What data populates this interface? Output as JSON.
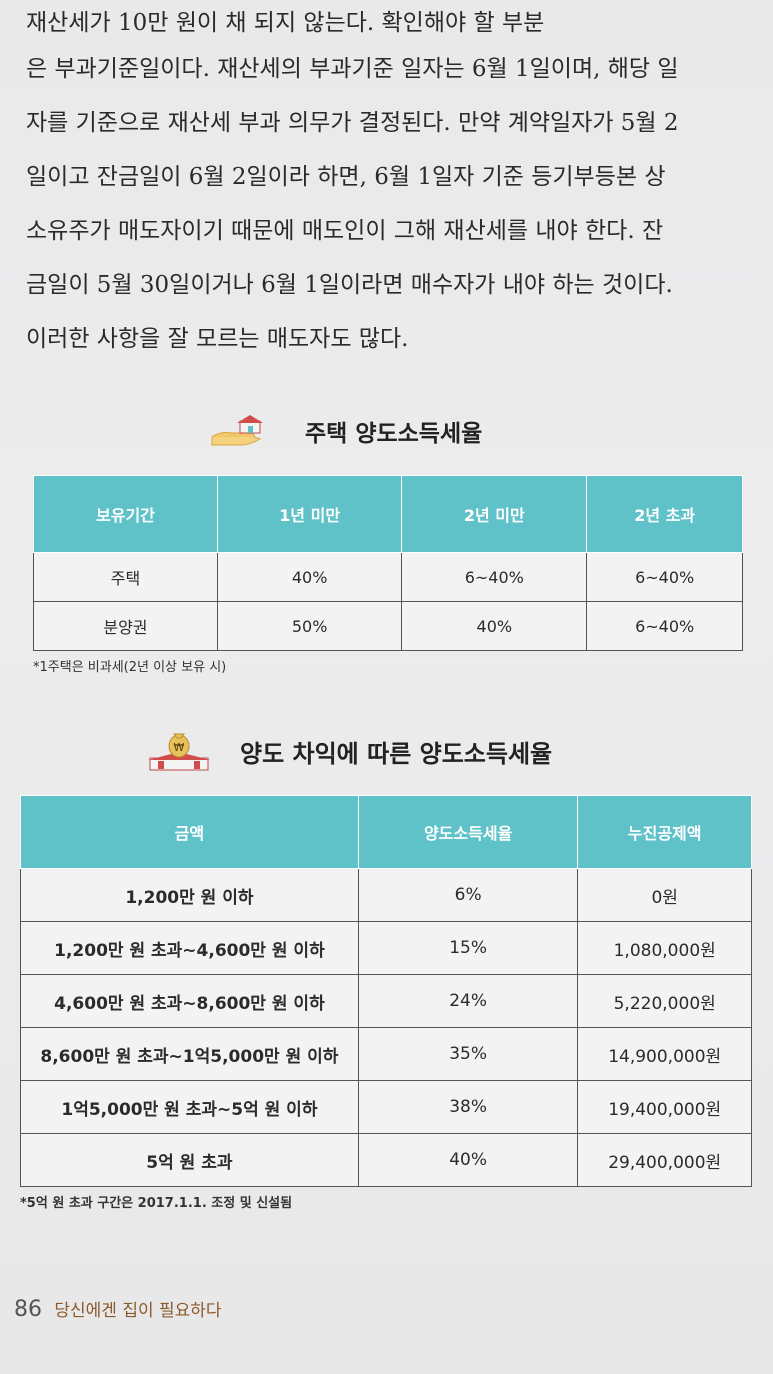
{
  "body_lines": [
    "재산세가 10만 원이 채 되지 않는다. 확인해야 할 부분",
    "은 부과기준일이다. 재산세의 부과기준 일자는 6월 1일이며, 해당 일",
    "자를 기준으로 재산세 부과 의무가 결정된다. 만약 계약일자가 5월 2",
    "일이고 잔금일이 6월 2일이라 하면, 6월 1일자 기준 등기부등본 상",
    "소유주가 매도자이기 때문에 매도인이 그해 재산세를 내야 한다. 잔",
    "금일이 5월 30일이거나 6월 1일이라면 매수자가 내야 하는 것이다.",
    "이러한 사항을 잘 모르는 매도자도 많다."
  ],
  "table1": {
    "title": "주택 양도소득세율",
    "icon": "hand-house-icon",
    "headers": [
      "보유기간",
      "1년 미만",
      "2년 미만",
      "2년 초과"
    ],
    "rows": [
      [
        "주택",
        "40%",
        "6~40%",
        "6~40%"
      ],
      [
        "분양권",
        "50%",
        "40%",
        "6~40%"
      ]
    ],
    "note": "*1주택은 비과세(2년 이상 보유 시)"
  },
  "table2": {
    "title": "양도 차익에 따른 양도소득세율",
    "icon": "money-bag-icon",
    "headers": [
      "금액",
      "양도소득세율",
      "누진공제액"
    ],
    "rows": [
      [
        "1,200만 원 이하",
        "6%",
        "0원"
      ],
      [
        "1,200만 원 초과~4,600만 원 이하",
        "15%",
        "1,080,000원"
      ],
      [
        "4,600만 원 초과~8,600만 원 이하",
        "24%",
        "5,220,000원"
      ],
      [
        "8,600만 원 초과~1억5,000만 원 이하",
        "35%",
        "14,900,000원"
      ],
      [
        "1억5,000만 원 초과~5억 원 이하",
        "38%",
        "19,400,000원"
      ],
      [
        "5억 원 초과",
        "40%",
        "29,400,000원"
      ]
    ],
    "note": "*5억 원 초과 구간은 2017.1.1. 조정 및 신설됨"
  },
  "footer": {
    "page_number": "86",
    "book_title": "당신에겐 집이 필요하다"
  },
  "colors": {
    "header_bg": "#5fc2c8",
    "header_text": "#ffffff",
    "border": "#555555"
  }
}
